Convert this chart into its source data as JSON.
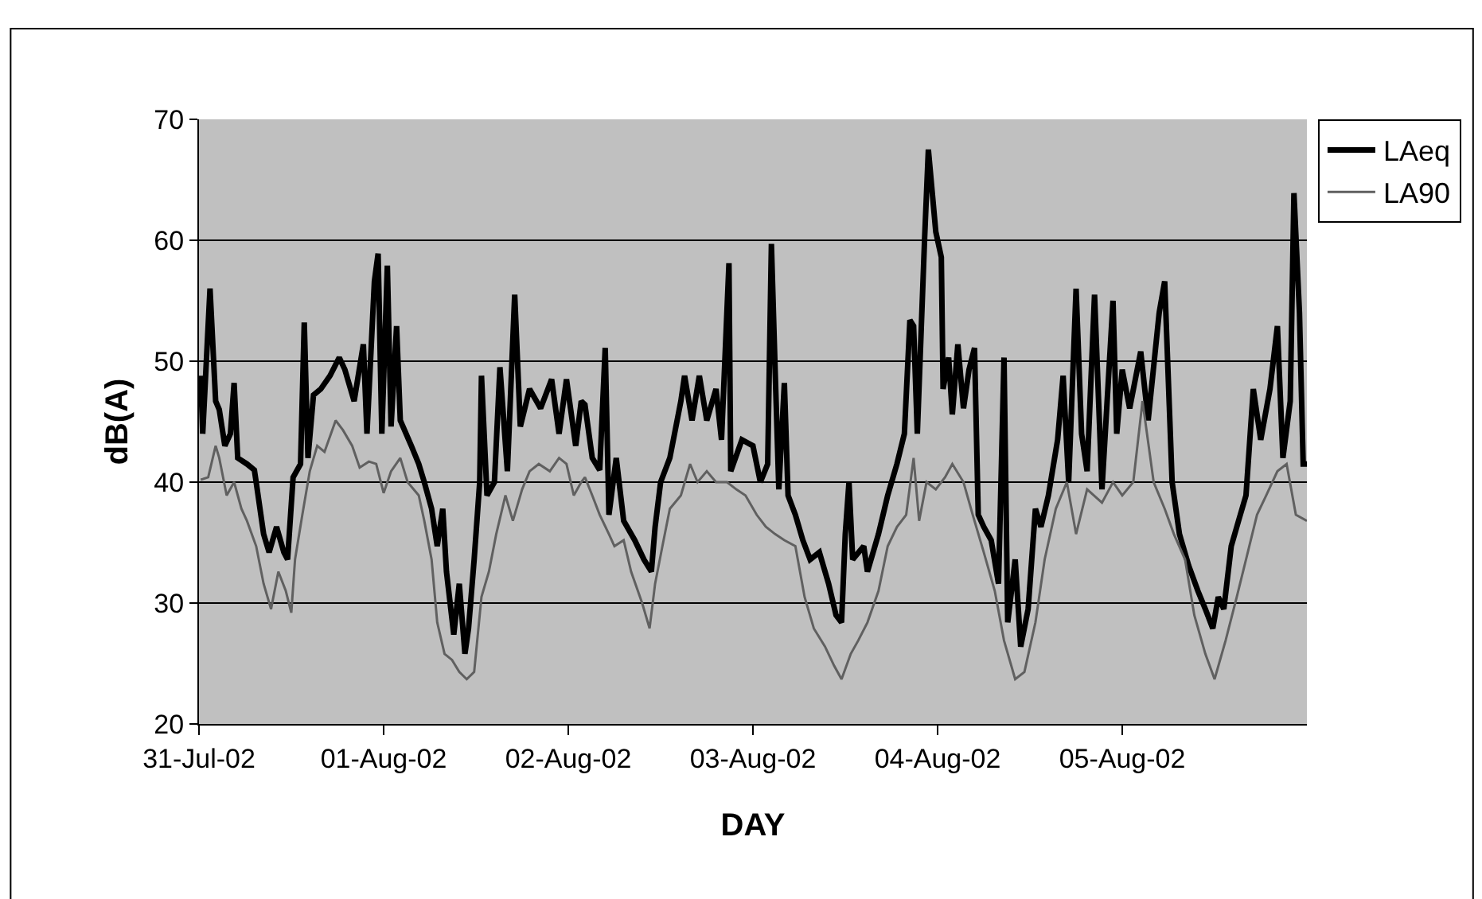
{
  "chart_data": {
    "type": "line",
    "xlabel": "DAY",
    "ylabel": "dB(A)",
    "xlim": [
      "--07-31",
      "--08-06"
    ],
    "xticks": [
      {
        "value": "--07-31",
        "label": "31-Jul-02"
      },
      {
        "value": "--08-01",
        "label": "01-Aug-02"
      },
      {
        "value": "--08-02",
        "label": "02-Aug-02"
      },
      {
        "value": "--08-03",
        "label": "03-Aug-02"
      },
      {
        "value": "--08-04",
        "label": "04-Aug-02"
      },
      {
        "value": "--08-05",
        "label": "05-Aug-02"
      }
    ],
    "ylim": [
      20,
      70
    ],
    "yticks": [
      20,
      30,
      40,
      50,
      60,
      70
    ],
    "grid": "y",
    "legend": "top right",
    "marker": "none",
    "line_style": "solid",
    "series": [
      {
        "name": "LAeq",
        "color": "#000000",
        "x": [
          "--07-31T00:14",
          "--07-31T00:29",
          "--07-31T01:26",
          "--07-31T02:10",
          "--07-31T02:38",
          "--07-31T03:22",
          "--07-31T04:05",
          "--07-31T04:34",
          "--07-31T05:02",
          "--07-31T06:14",
          "--07-31T07:12",
          "--07-31T07:26",
          "--07-31T08:24",
          "--07-31T09:07",
          "--07-31T10:05",
          "--07-31T11:02",
          "--07-31T11:31",
          "--07-31T12:14",
          "--07-31T13:12",
          "--07-31T13:41",
          "--07-31T14:10",
          "--07-31T14:53",
          "--07-31T15:50",
          "--07-31T17:02",
          "--07-31T18:14",
          "--07-31T18:58",
          "--07-31T20:10",
          "--07-31T21:22",
          "--07-31T21:50",
          "--07-31T22:48",
          "--07-31T23:17",
          "--07-31T23:46",
          "--08-01T00:29",
          "--08-01T00:58",
          "--08-01T01:41",
          "--08-01T02:10",
          "--08-01T03:36",
          "--08-01T04:34",
          "--08-01T05:17",
          "--08-01T06:14",
          "--08-01T06:58",
          "--08-01T07:41",
          "--08-01T08:10",
          "--08-01T09:07",
          "--08-01T09:50",
          "--08-01T10:34",
          "--08-01T11:02",
          "--08-01T11:46",
          "--08-01T12:29",
          "--08-01T12:43",
          "--08-01T13:26",
          "--08-01T14:24",
          "--08-01T15:07",
          "--08-01T16:05",
          "--08-01T17:02",
          "--08-01T17:46",
          "--08-01T18:58",
          "--08-01T20:24",
          "--08-01T21:50",
          "--08-01T22:48",
          "--08-01T23:46",
          "--08-02T00:58",
          "--08-02T01:41",
          "--08-02T02:10",
          "--08-02T03:07",
          "--08-02T04:05",
          "--08-02T04:48",
          "--08-02T05:17",
          "--08-02T06:14",
          "--08-02T07:12",
          "--08-02T08:38",
          "--08-02T09:50",
          "--08-02T10:48",
          "--08-02T11:17",
          "--08-02T12:00",
          "--08-02T13:12",
          "--08-02T14:38",
          "--08-02T15:07",
          "--08-02T16:05",
          "--08-02T17:02",
          "--08-02T18:00",
          "--08-02T19:12",
          "--08-02T19:55",
          "--08-02T20:53",
          "--08-02T21:07",
          "--08-02T22:34",
          "--08-03T00:00",
          "--08-03T00:58",
          "--08-03T01:55",
          "--08-03T02:24",
          "--08-03T02:53",
          "--08-03T03:22",
          "--08-03T04:05",
          "--08-03T04:34",
          "--08-03T05:31",
          "--08-03T06:29",
          "--08-03T07:26",
          "--08-03T08:38",
          "--08-03T09:50",
          "--08-03T10:48",
          "--08-03T11:31",
          "--08-03T12:00",
          "--08-03T12:29",
          "--08-03T12:58",
          "--08-03T14:24",
          "--08-03T14:53",
          "--08-03T16:19",
          "--08-03T17:31",
          "--08-03T18:43",
          "--08-03T19:41",
          "--08-03T20:24",
          "--08-03T20:53",
          "--08-03T21:22",
          "--08-03T22:19",
          "--08-03T22:48",
          "--08-03T23:46",
          "--08-04T00:29",
          "--08-04T00:43",
          "--08-04T01:26",
          "--08-04T01:55",
          "--08-04T02:38",
          "--08-04T03:22",
          "--08-04T04:05",
          "--08-04T04:48",
          "--08-04T05:17",
          "--08-04T06:00",
          "--08-04T06:58",
          "--08-04T07:55",
          "--08-04T08:38",
          "--08-04T09:07",
          "--08-04T10:05",
          "--08-04T10:48",
          "--08-04T11:46",
          "--08-04T12:43",
          "--08-04T13:26",
          "--08-04T14:24",
          "--08-04T15:36",
          "--08-04T16:19",
          "--08-04T17:02",
          "--08-04T18:00",
          "--08-04T18:43",
          "--08-04T19:26",
          "--08-04T20:24",
          "--08-04T21:22",
          "--08-04T22:48",
          "--08-04T23:17",
          "--08-05T00:00",
          "--08-05T00:58",
          "--08-05T02:24",
          "--08-05T03:22",
          "--08-05T04:48",
          "--08-05T05:31",
          "--08-05T06:29",
          "--08-05T07:26",
          "--08-05T08:38",
          "--08-05T09:50",
          "--08-05T10:48",
          "--08-05T11:46",
          "--08-05T12:29",
          "--08-05T13:12",
          "--08-05T14:10",
          "--08-05T15:07",
          "--08-05T16:05",
          "--08-05T17:02",
          "--08-05T18:00",
          "--08-05T19:12",
          "--08-05T20:10",
          "--08-05T20:53",
          "--08-05T21:50",
          "--08-05T22:19",
          "--08-05T23:02",
          "--08-05T23:31",
          "--08-06T00:00"
        ],
        "values": [
          48.8,
          44,
          56,
          46.7,
          46,
          43,
          44,
          48.2,
          42,
          41.5,
          41,
          40,
          35.7,
          34.2,
          36.3,
          34.2,
          33.6,
          40.4,
          41.5,
          53.2,
          42,
          47.2,
          47.7,
          48.8,
          50.3,
          49.3,
          46.7,
          51.4,
          44,
          56.6,
          58.9,
          44,
          57.9,
          44.6,
          52.9,
          45.1,
          43,
          41.5,
          40,
          37.8,
          34.7,
          37.8,
          32.6,
          27.4,
          31.6,
          25.8,
          27.9,
          33.6,
          40,
          48.8,
          38.9,
          40,
          49.5,
          40.9,
          55.5,
          44.6,
          47.7,
          46.1,
          48.5,
          44,
          48.5,
          43,
          46.7,
          46.4,
          42,
          41,
          51.1,
          37.3,
          42,
          36.8,
          35.2,
          33.6,
          32.6,
          36.3,
          40,
          42,
          46.7,
          48.8,
          45.1,
          48.8,
          45.1,
          47.7,
          43.5,
          58.1,
          40.9,
          43.5,
          43,
          40,
          41.5,
          59.7,
          49.3,
          39.4,
          48.2,
          38.9,
          37.3,
          35.2,
          33.6,
          34.2,
          31.6,
          29,
          28.4,
          35.7,
          40,
          33.6,
          34.7,
          32.6,
          35.7,
          38.9,
          41.5,
          44,
          53.4,
          52.9,
          44,
          60.2,
          67.5,
          60.7,
          58.6,
          47.7,
          50.3,
          45.6,
          51.4,
          46.1,
          49.3,
          51.1,
          37.3,
          36.3,
          35.2,
          31.6,
          50.3,
          28.4,
          33.6,
          26.4,
          29.5,
          37.8,
          36.3,
          38.9,
          43.5,
          48.8,
          40,
          56,
          44,
          40.9,
          55.5,
          39.4,
          55,
          44,
          49.3,
          46.1,
          50.8,
          45.1,
          54,
          56.6,
          40,
          35.7,
          33.1,
          31,
          29.5,
          27.9,
          30.5,
          29.5,
          34.7,
          36.8,
          38.9,
          47.7,
          43.5,
          47.7,
          52.9,
          42,
          46.7,
          63.9,
          54,
          41.5,
          41.5
        ]
      },
      {
        "name": "LA90",
        "color": "#606060",
        "x": [
          "--07-31T00:14",
          "--07-31T01:12",
          "--07-31T02:10",
          "--07-31T02:38",
          "--07-31T03:36",
          "--07-31T04:34",
          "--07-31T05:31",
          "--07-31T06:14",
          "--07-31T07:26",
          "--07-31T08:24",
          "--07-31T09:22",
          "--07-31T10:19",
          "--07-31T11:17",
          "--07-31T12:00",
          "--07-31T12:29",
          "--07-31T13:26",
          "--07-31T14:24",
          "--07-31T15:22",
          "--07-31T16:19",
          "--07-31T17:46",
          "--07-31T18:43",
          "--07-31T19:55",
          "--07-31T20:53",
          "--07-31T22:05",
          "--07-31T23:02",
          "--08-01T00:00",
          "--08-01T00:58",
          "--08-01T02:10",
          "--08-01T03:07",
          "--08-01T04:34",
          "--08-01T05:17",
          "--08-01T06:14",
          "--08-01T06:58",
          "--08-01T07:55",
          "--08-01T08:53",
          "--08-01T09:50",
          "--08-01T10:48",
          "--08-01T11:46",
          "--08-01T12:43",
          "--08-01T13:41",
          "--08-01T14:38",
          "--08-01T15:50",
          "--08-01T16:48",
          "--08-01T18:00",
          "--08-01T18:58",
          "--08-01T20:10",
          "--08-01T21:36",
          "--08-01T22:48",
          "--08-01T23:46",
          "--08-02T00:43",
          "--08-02T01:41",
          "--08-02T02:10",
          "--08-02T03:07",
          "--08-02T04:05",
          "--08-02T05:17",
          "--08-02T06:00",
          "--08-02T07:12",
          "--08-02T08:10",
          "--08-02T09:36",
          "--08-02T10:34",
          "--08-02T11:17",
          "--08-02T12:14",
          "--08-02T13:12",
          "--08-02T14:38",
          "--08-02T15:50",
          "--08-02T16:48",
          "--08-02T18:00",
          "--08-02T19:12",
          "--08-02T20:38",
          "--08-02T21:50",
          "--08-02T23:02",
          "--08-03T00:29",
          "--08-03T01:41",
          "--08-03T02:53",
          "--08-03T04:05",
          "--08-03T05:31",
          "--08-03T06:43",
          "--08-03T07:55",
          "--08-03T09:22",
          "--08-03T10:34",
          "--08-03T11:31",
          "--08-03T12:43",
          "--08-03T13:41",
          "--08-03T14:53",
          "--08-03T16:19",
          "--08-03T17:31",
          "--08-03T18:43",
          "--08-03T19:55",
          "--08-03T20:53",
          "--08-03T21:36",
          "--08-03T22:34",
          "--08-03T23:46",
          "--08-04T00:58",
          "--08-04T01:55",
          "--08-04T03:22",
          "--08-04T04:34",
          "--08-04T06:00",
          "--08-04T07:26",
          "--08-04T08:38",
          "--08-04T10:05",
          "--08-04T11:17",
          "--08-04T12:43",
          "--08-04T13:55",
          "--08-04T15:22",
          "--08-04T16:48",
          "--08-04T18:00",
          "--08-04T19:26",
          "--08-04T21:22",
          "--08-04T22:48",
          "--08-05T00:00",
          "--08-05T01:26",
          "--08-05T02:38",
          "--08-05T04:05",
          "--08-05T05:31",
          "--08-05T06:43",
          "--08-05T08:10",
          "--08-05T09:22",
          "--08-05T10:48",
          "--08-05T12:00",
          "--08-05T13:26",
          "--08-05T14:53",
          "--08-05T16:05",
          "--08-05T17:31",
          "--08-05T18:43",
          "--08-05T20:10",
          "--08-05T21:22",
          "--08-05T22:34",
          "--08-06T00:00"
        ],
        "values": [
          40.2,
          40.4,
          43,
          42,
          38.9,
          40,
          37.8,
          36.8,
          34.7,
          31.6,
          29.5,
          32.6,
          31,
          29.2,
          33.6,
          37.3,
          40.9,
          43,
          42.5,
          45.1,
          44.3,
          43,
          41.2,
          41.7,
          41.5,
          39.1,
          40.9,
          42,
          40,
          38.9,
          36.8,
          33.6,
          28.4,
          25.8,
          25.3,
          24.3,
          23.7,
          24.3,
          30.5,
          32.6,
          35.7,
          38.9,
          36.8,
          39.4,
          40.9,
          41.5,
          40.9,
          42,
          41.5,
          38.9,
          40,
          40.4,
          38.9,
          37.3,
          35.7,
          34.7,
          35.2,
          32.6,
          30,
          27.9,
          31.6,
          34.7,
          37.8,
          38.9,
          41.5,
          40,
          40.9,
          40,
          40,
          39.4,
          38.9,
          37.3,
          36.3,
          35.7,
          35.2,
          34.7,
          30.5,
          27.9,
          26.4,
          24.8,
          23.7,
          25.8,
          26.9,
          28.4,
          31,
          34.7,
          36.3,
          37.3,
          42,
          36.8,
          40,
          39.4,
          40.4,
          41.5,
          40,
          37.3,
          34.2,
          31,
          26.9,
          23.7,
          24.3,
          28.4,
          33.6,
          37.8,
          40,
          35.7,
          39.4,
          38.3,
          40,
          38.9,
          40,
          46.7,
          40,
          37.8,
          35.7,
          33.6,
          29,
          25.8,
          23.7,
          26.9,
          30.5,
          33.6,
          37.3,
          38.9,
          40.9,
          41.5,
          37.3,
          36.8
        ]
      }
    ]
  }
}
